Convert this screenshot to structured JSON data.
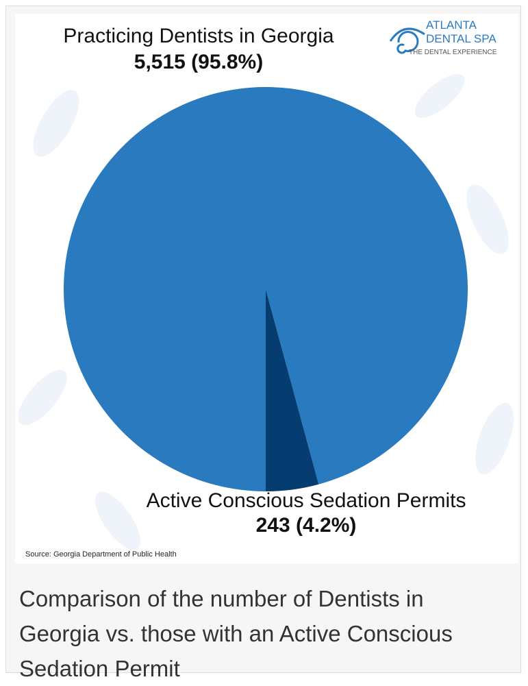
{
  "chart_data": {
    "type": "pie",
    "categories": [
      "Practicing Dentists in Georgia",
      "Active Conscious Sedation Permits"
    ],
    "values": [
      5515,
      243
    ],
    "value_labels": [
      "5,515 (95.8%)",
      "243 (4.2%)"
    ],
    "colors": [
      "#2a7abf",
      "#063d71"
    ],
    "source": "Source: Georgia Department of Public Health"
  },
  "logo": {
    "line1": "ATLANTA",
    "line2": "DENTAL SPA",
    "tagline": "THE DENTAL EXPERIENCE"
  },
  "caption": "Comparison of the number of Dentists in Georgia vs. those with an Active Conscious Sedation Permit"
}
